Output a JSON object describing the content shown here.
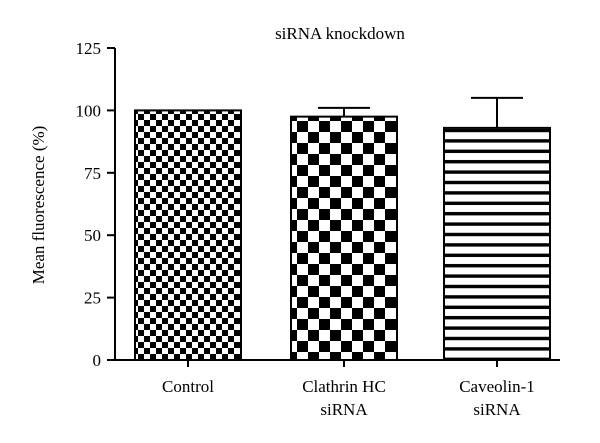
{
  "chart_data": {
    "type": "bar",
    "title": "siRNA knockdown",
    "ylabel": "Mean fluorescence (%)",
    "xlabel": "",
    "ylim": [
      0,
      125
    ],
    "yticks": [
      "0",
      "25",
      "50",
      "75",
      "100",
      "125"
    ],
    "categories": [
      [
        "Control"
      ],
      [
        "Clathrin HC",
        "siRNA"
      ],
      [
        "Caveolin-1",
        "siRNA"
      ]
    ],
    "values": [
      100,
      97.5,
      93
    ],
    "errors": [
      0,
      3.5,
      12
    ],
    "patterns": [
      "fine-checker",
      "coarse-checker",
      "horizontal-stripes"
    ],
    "colors": {
      "fill": "#000000",
      "background": "#ffffff"
    }
  }
}
